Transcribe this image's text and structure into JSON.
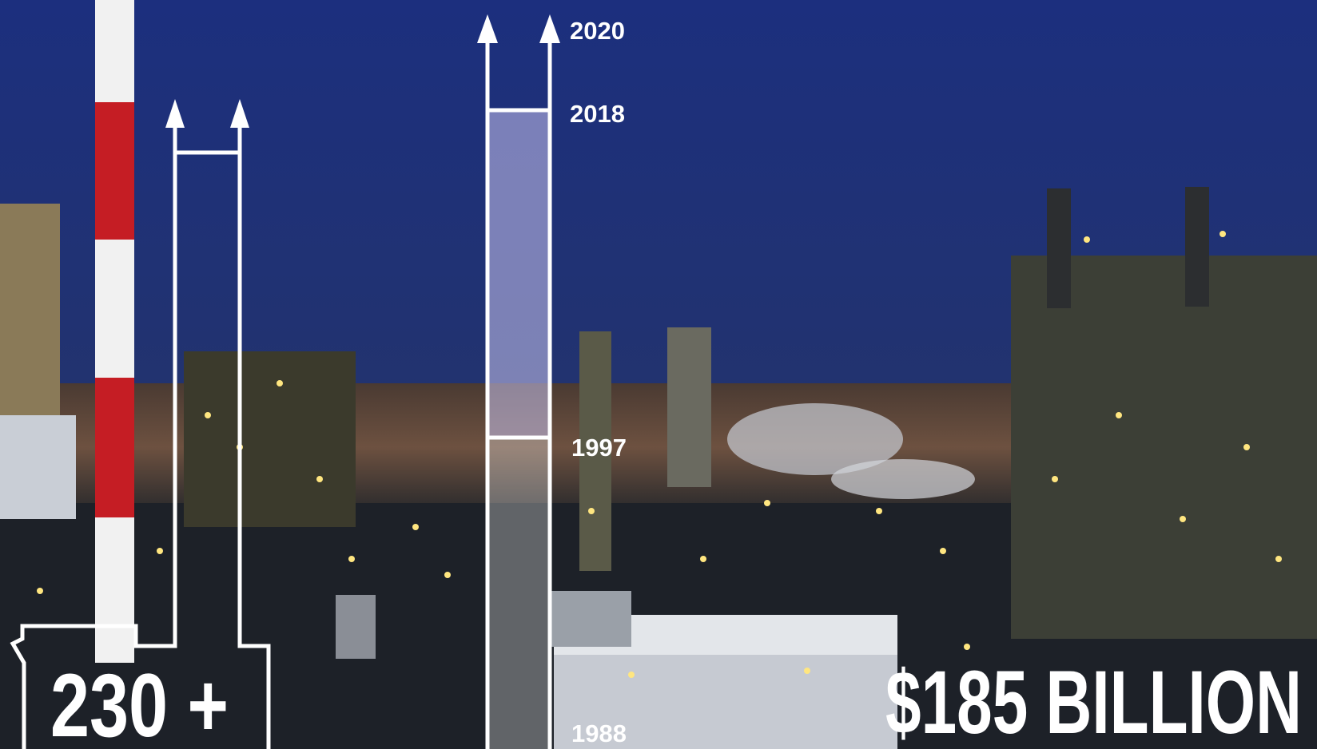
{
  "timeline": {
    "years": [
      "2020",
      "2018",
      "1997",
      "1988"
    ]
  },
  "facts": {
    "count": "230 +",
    "investment": "$185 BILLION"
  }
}
